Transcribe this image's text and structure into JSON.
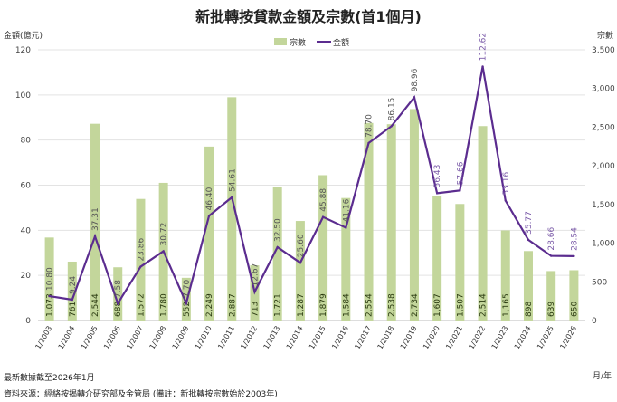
{
  "chart_data": {
    "type": "bar+line",
    "title": "新批轉按貸款金額及宗數(首1個月)",
    "ylabel_left": "金額(億元)",
    "ylabel_right": "宗數",
    "xlabel": "月/年",
    "ylim_left": [
      0,
      120
    ],
    "ylim_right": [
      0,
      3500
    ],
    "yticks_left": [
      "0",
      "20",
      "40",
      "60",
      "80",
      "100",
      "120"
    ],
    "yticks_right": [
      "0",
      "500",
      "1,000",
      "1,500",
      "2,000",
      "2,500",
      "3,000",
      "3,500"
    ],
    "grid": true,
    "legend_position": "top-center",
    "categories": [
      "1/2003",
      "1/2004",
      "1/2005",
      "1/2006",
      "1/2007",
      "1/2008",
      "1/2009",
      "1/2010",
      "1/2011",
      "1/2012",
      "1/2013",
      "1/2014",
      "1/2015",
      "1/2016",
      "1/2017",
      "1/2018",
      "1/2019",
      "1/2020",
      "1/2021",
      "1/2022",
      "1/2023",
      "1/2024",
      "1/2025",
      "1/2026"
    ],
    "series": [
      {
        "name": "宗數",
        "type": "bar",
        "axis": "right",
        "color": "#c3d69b",
        "values": [
          1073,
          761,
          2544,
          688,
          1572,
          1780,
          552,
          2249,
          2887,
          713,
          1721,
          1287,
          1879,
          1584,
          2554,
          2538,
          2734,
          1607,
          1507,
          2514,
          1165,
          898,
          639,
          650
        ],
        "labels": [
          "1,073",
          "761",
          "2,544",
          "688",
          "1,572",
          "1,780",
          "552",
          "2,249",
          "2,887",
          "713",
          "1,721",
          "1,287",
          "1,879",
          "1,584",
          "2,554",
          "2,538",
          "2,734",
          "1,607",
          "1,507",
          "2,514",
          "1,165",
          "898",
          "639",
          "650"
        ]
      },
      {
        "name": "金額",
        "type": "line",
        "axis": "left",
        "color": "#5b2c8f",
        "values": [
          10.8,
          9.24,
          37.31,
          7.58,
          23.86,
          30.72,
          7.7,
          46.4,
          54.61,
          12.67,
          32.5,
          25.6,
          45.88,
          41.16,
          78.7,
          86.15,
          98.96,
          56.43,
          57.66,
          112.62,
          53.16,
          35.77,
          28.66,
          28.54
        ],
        "labels": [
          "10.80",
          "9.24",
          "37.31",
          "7.58",
          "23.86",
          "30.72",
          "7.70",
          "46.40",
          "54.61",
          "12.67",
          "32.50",
          "25.60",
          "45.88",
          "41.16",
          "78.70",
          "86.15",
          "98.96",
          "56.43",
          "57.66",
          "112.62",
          "53.16",
          "35.77",
          "28.66",
          "28.54"
        ]
      }
    ]
  },
  "footer": {
    "note": "最新數據截至2026年1月",
    "source": "資料來源：經絡按揭轉介研究部及金管局 (備註：新批轉按宗數始於2003年)"
  }
}
